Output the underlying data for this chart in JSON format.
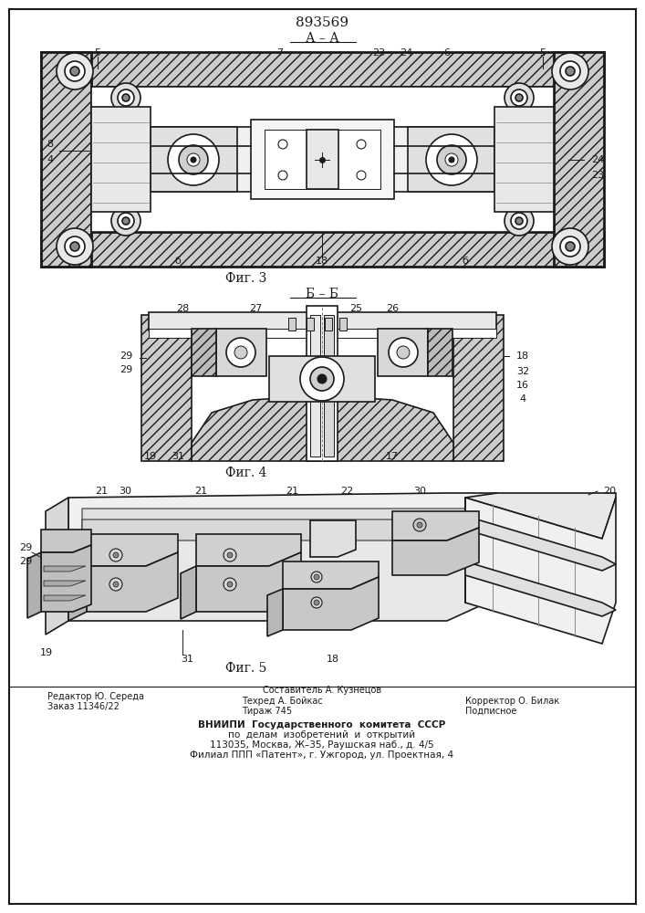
{
  "patent_number": "893569",
  "section_label_1": "А – А",
  "section_label_2": "Б – Б",
  "fig3_label": "Фиг. 3",
  "fig4_label": "Фиг. 4",
  "fig5_label": "Фиг. 5",
  "footer_line1_left": "Редактор Ю. Середа",
  "footer_line2_left": "Заказ 11346/22",
  "footer_line1_center": "Составитель А. Кузнецов",
  "footer_line2_center": "Техред А. Бойкас",
  "footer_line3_center": "Тираж 745",
  "footer_line1_right": "Корректор О. Билак",
  "footer_line2_right": "Подписное",
  "footer_vnipi1": "ВНИИПИ  Государственного  комитета  СССР",
  "footer_vnipi2": "по  делам  изобретений  и  открытий",
  "footer_vnipi3": "113035, Москва, Ж–35, Раушская наб., д. 4/5",
  "footer_vnipi4": "Филиал ППП «Патент», г. Ужгород, ул. Проектная, 4",
  "bg_color": "#ffffff",
  "line_color": "#1a1a1a"
}
